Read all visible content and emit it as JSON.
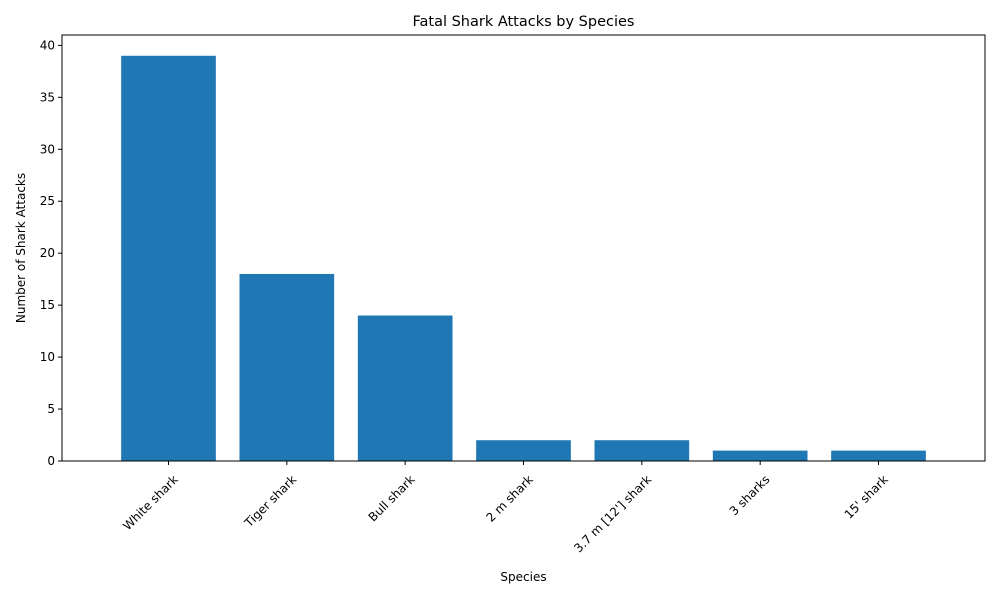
{
  "chart_data": {
    "type": "bar",
    "title": "Fatal Shark Attacks by Species",
    "xlabel": "Species",
    "ylabel": "Number of Shark Attacks",
    "categories": [
      "White shark",
      "Tiger shark",
      "Bull shark",
      "2 m shark",
      "3.7 m [12'] shark",
      "3 sharks",
      "15' shark"
    ],
    "values": [
      39,
      18,
      14,
      2,
      2,
      1,
      1
    ],
    "ylim": [
      0,
      41
    ],
    "yticks": [
      0,
      5,
      10,
      15,
      20,
      25,
      30,
      35,
      40
    ],
    "x_tick_rotation_deg": 45,
    "bar_color": "#1f77b4",
    "grid": false,
    "legend": "none"
  }
}
